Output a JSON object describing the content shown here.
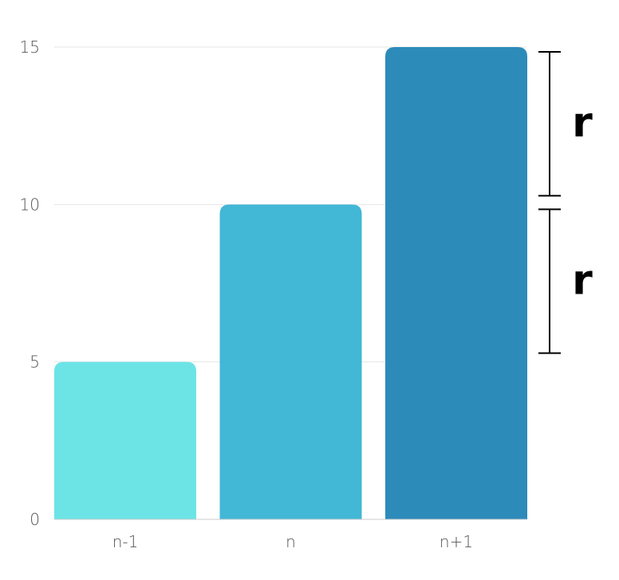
{
  "chart_data": {
    "type": "bar",
    "categories": [
      "n-1",
      "n",
      "n+1"
    ],
    "values": [
      5,
      10,
      15
    ],
    "colors": [
      "#6ce4e6",
      "#43b7d6",
      "#2d8bba"
    ],
    "ylim": [
      0,
      15
    ],
    "yticks": [
      0,
      5,
      10,
      15
    ],
    "grid": true,
    "annotations": [
      {
        "label": "r",
        "from": 10,
        "to": 15
      },
      {
        "label": "r",
        "from": 5,
        "to": 10
      }
    ]
  }
}
